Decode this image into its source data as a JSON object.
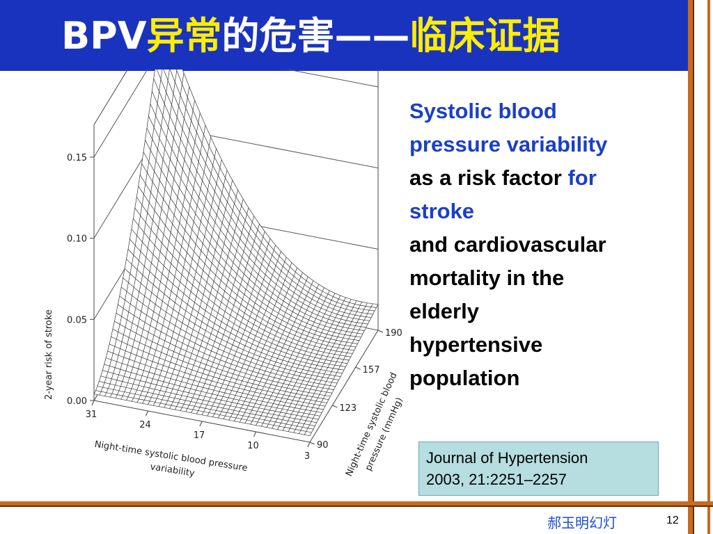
{
  "slide": {
    "title_prefix": "BPV",
    "title_part1": "异常",
    "title_part2": "的危害——",
    "title_part3": "临床证据",
    "description": {
      "line_blue_1": "Systolic blood",
      "line_blue_2": "pressure variability",
      "line_black_1": "as a risk factor ",
      "line_blue_3": "for",
      "line_blue_4": "stroke",
      "line_black_2": "and cardiovascular",
      "line_black_3": "mortality in the",
      "line_black_4": "elderly",
      "line_black_5": "hypertensive",
      "line_black_6": "population"
    },
    "citation_line1": "Journal of Hypertension",
    "citation_line2": "2003, 21:2251–2257",
    "author": "郝玉明幻灯",
    "page_number": "12"
  },
  "colors": {
    "title_bar": "#1a33bf",
    "title_highlight": "#ffee00",
    "accent_text": "#1a3fc7",
    "frame": "#c96a1e",
    "citation_box": "#b6dde0"
  },
  "chart_data": {
    "type": "surface",
    "zlabel": "2-year risk of stroke",
    "xlabel": "Night-time systolic blood pressure variability",
    "ylabel": "Night-time systolic blood pressure (mmHg)",
    "z_ticks": [
      "0.00",
      "0.05",
      "0.10",
      "0.15"
    ],
    "x_ticks": [
      "31",
      "24",
      "17",
      "10",
      "3"
    ],
    "y_ticks": [
      "90",
      "123",
      "157",
      "190"
    ],
    "zlim": [
      0,
      0.15
    ],
    "xlim": [
      3,
      31
    ],
    "ylim": [
      90,
      190
    ],
    "peak": {
      "x": 31,
      "y": 190,
      "z": 0.17
    },
    "grid": true
  }
}
